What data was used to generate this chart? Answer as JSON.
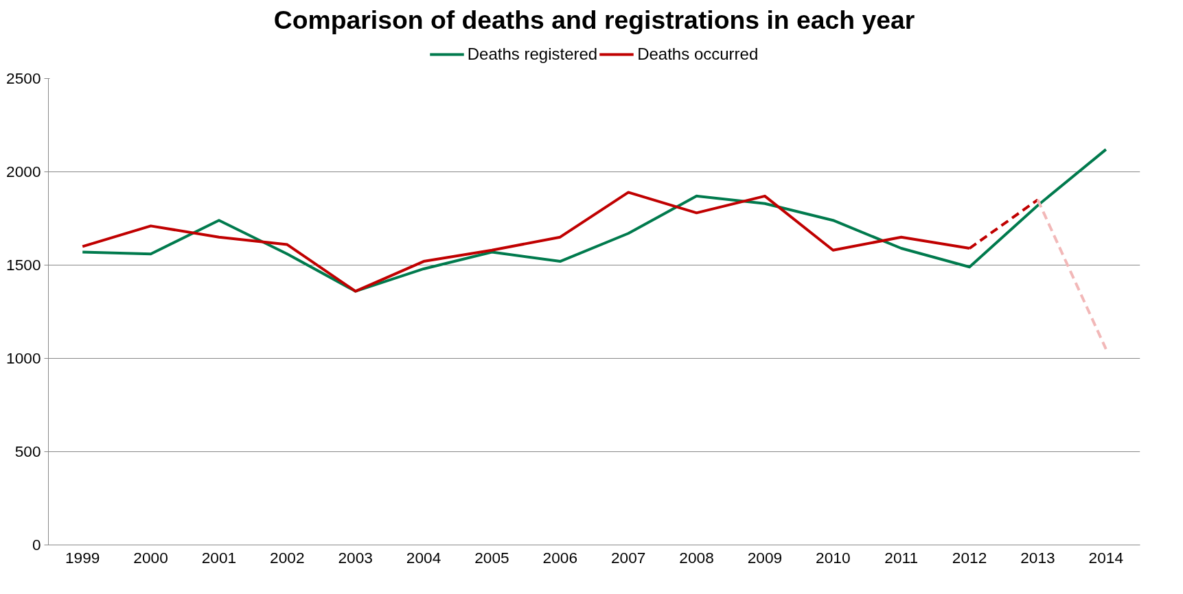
{
  "chart_data": {
    "type": "line",
    "title": "Comparison of deaths and registrations in each year",
    "categories": [
      "1999",
      "2000",
      "2001",
      "2002",
      "2003",
      "2004",
      "2005",
      "2006",
      "2007",
      "2008",
      "2009",
      "2010",
      "2011",
      "2012",
      "2013",
      "2014"
    ],
    "series": [
      {
        "name": "Deaths registered",
        "color": "#007a4d",
        "values": [
          1570,
          1560,
          1740,
          1560,
          1360,
          1480,
          1570,
          1520,
          1670,
          1870,
          1830,
          1740,
          1590,
          1490,
          1820,
          2120
        ]
      },
      {
        "name": "Deaths occurred",
        "color": "#c00000",
        "values": [
          1600,
          1710,
          1650,
          1610,
          1360,
          1520,
          1580,
          1650,
          1890,
          1780,
          1870,
          1580,
          1650,
          1590,
          null,
          null
        ]
      },
      {
        "color": "#c00000",
        "values": [
          null,
          null,
          null,
          null,
          null,
          null,
          null,
          null,
          null,
          null,
          null,
          null,
          null,
          1590,
          1850,
          null
        ],
        "line_style": "dashed"
      },
      {
        "color": "#f2b8b8",
        "values": [
          null,
          null,
          null,
          null,
          null,
          null,
          null,
          null,
          null,
          null,
          null,
          null,
          null,
          null,
          1850,
          1050
        ],
        "line_style": "dashed"
      }
    ],
    "ylim": [
      0,
      2500
    ],
    "yticks": [
      0,
      500,
      1000,
      1500,
      2000,
      2500
    ],
    "grid": "y",
    "legend": "top",
    "line_style": "solid",
    "marker": "none"
  }
}
